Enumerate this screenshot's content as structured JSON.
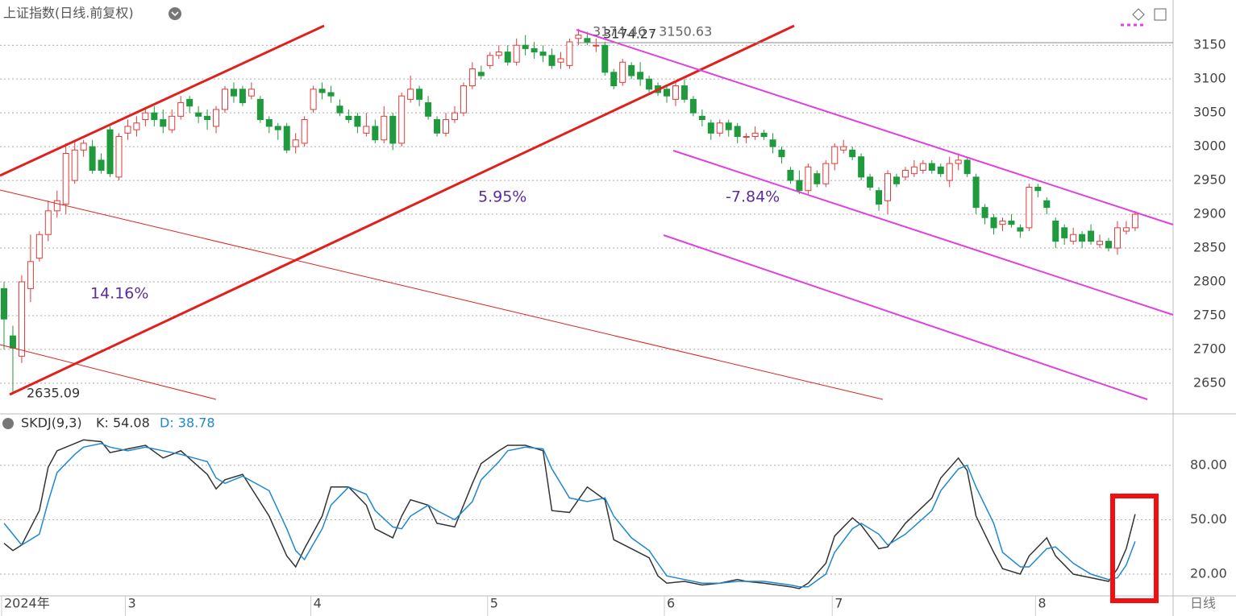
{
  "chart_data": [
    {
      "type": "candlestick",
      "title": "上证指数(日线.前复权)",
      "ylim": [
        2607,
        3211
      ],
      "yticks": [
        2650,
        2700,
        2750,
        2800,
        2850,
        2900,
        2950,
        3000,
        3050,
        3100,
        3150
      ],
      "up_color": "#e23a3a",
      "down_color": "#1f9a3c",
      "grid": true,
      "x_labels": [
        {
          "index": 0,
          "label": "2024年"
        },
        {
          "index": 14,
          "label": "3"
        },
        {
          "index": 35,
          "label": "4"
        },
        {
          "index": 55,
          "label": "5"
        },
        {
          "index": 75,
          "label": "6"
        },
        {
          "index": 94,
          "label": "7"
        },
        {
          "index": 117,
          "label": "8"
        }
      ],
      "period_button": "日线",
      "annotations": {
        "low": "2635.09",
        "high": "3174.27",
        "cursor": "3174.46 - 3150.63",
        "gain1": "14.16%",
        "gain2": "5.95%",
        "gain3": "-7.84%"
      },
      "candles": [
        [
          2790,
          2800,
          2700,
          2745
        ],
        [
          2720,
          2735,
          2635,
          2702
        ],
        [
          2690,
          2810,
          2680,
          2800
        ],
        [
          2790,
          2870,
          2770,
          2830
        ],
        [
          2835,
          2875,
          2830,
          2870
        ],
        [
          2870,
          2920,
          2860,
          2905
        ],
        [
          2905,
          2935,
          2895,
          2920
        ],
        [
          2915,
          3005,
          2900,
          2990
        ],
        [
          2950,
          3010,
          2945,
          2995
        ],
        [
          2995,
          3010,
          2985,
          3005
        ],
        [
          3000,
          3010,
          2960,
          2965
        ],
        [
          2980,
          2990,
          2960,
          2965
        ],
        [
          3025,
          3030,
          2955,
          2960
        ],
        [
          2955,
          3020,
          2950,
          3015
        ],
        [
          3020,
          3040,
          3010,
          3030
        ],
        [
          3025,
          3045,
          3015,
          3035
        ],
        [
          3040,
          3055,
          3030,
          3050
        ],
        [
          3050,
          3060,
          3030,
          3040
        ],
        [
          3040,
          3055,
          3020,
          3030
        ],
        [
          3025,
          3055,
          3020,
          3045
        ],
        [
          3045,
          3075,
          3040,
          3065
        ],
        [
          3070,
          3075,
          3050,
          3060
        ],
        [
          3050,
          3060,
          3035,
          3045
        ],
        [
          3045,
          3055,
          3025,
          3040
        ],
        [
          3030,
          3060,
          3020,
          3055
        ],
        [
          3055,
          3090,
          3050,
          3085
        ],
        [
          3085,
          3095,
          3065,
          3075
        ],
        [
          3085,
          3090,
          3060,
          3065
        ],
        [
          3075,
          3095,
          3070,
          3085
        ],
        [
          3070,
          3075,
          3035,
          3040
        ],
        [
          3040,
          3045,
          3020,
          3030
        ],
        [
          3030,
          3035,
          3010,
          3025
        ],
        [
          3030,
          3035,
          2990,
          2995
        ],
        [
          3000,
          3020,
          2990,
          3010
        ],
        [
          3005,
          3045,
          3000,
          3040
        ],
        [
          3055,
          3090,
          3050,
          3085
        ],
        [
          3085,
          3095,
          3070,
          3080
        ],
        [
          3080,
          3090,
          3065,
          3075
        ],
        [
          3060,
          3070,
          3045,
          3050
        ],
        [
          3045,
          3055,
          3035,
          3040
        ],
        [
          3045,
          3050,
          3020,
          3030
        ],
        [
          3020,
          3050,
          3015,
          3030
        ],
        [
          3030,
          3040,
          3005,
          3010
        ],
        [
          3010,
          3060,
          3005,
          3045
        ],
        [
          3045,
          3050,
          2995,
          3005
        ],
        [
          3005,
          3080,
          3000,
          3075
        ],
        [
          3070,
          3105,
          3065,
          3085
        ],
        [
          3085,
          3090,
          3060,
          3070
        ],
        [
          3065,
          3075,
          3040,
          3045
        ],
        [
          3040,
          3045,
          3015,
          3020
        ],
        [
          3020,
          3050,
          3015,
          3040
        ],
        [
          3040,
          3060,
          3035,
          3050
        ],
        [
          3050,
          3095,
          3045,
          3090
        ],
        [
          3090,
          3125,
          3085,
          3115
        ],
        [
          3110,
          3120,
          3100,
          3105
        ],
        [
          3120,
          3140,
          3115,
          3135
        ],
        [
          3135,
          3150,
          3130,
          3140
        ],
        [
          3140,
          3150,
          3120,
          3125
        ],
        [
          3125,
          3160,
          3120,
          3150
        ],
        [
          3150,
          3165,
          3135,
          3145
        ],
        [
          3145,
          3155,
          3130,
          3140
        ],
        [
          3140,
          3150,
          3125,
          3135
        ],
        [
          3135,
          3145,
          3115,
          3120
        ],
        [
          3125,
          3140,
          3115,
          3130
        ],
        [
          3120,
          3160,
          3115,
          3155
        ],
        [
          3160,
          3174.27,
          3150,
          3165
        ],
        [
          3160,
          3170,
          3150,
          3155
        ],
        [
          3150,
          3160,
          3140,
          3150
        ],
        [
          3150,
          3155,
          3105,
          3110
        ],
        [
          3110,
          3115,
          3085,
          3090
        ],
        [
          3095,
          3130,
          3090,
          3125
        ],
        [
          3120,
          3125,
          3100,
          3105
        ],
        [
          3110,
          3125,
          3090,
          3100
        ],
        [
          3100,
          3105,
          3080,
          3085
        ],
        [
          3090,
          3095,
          3075,
          3080
        ],
        [
          3085,
          3090,
          3065,
          3075
        ],
        [
          3070,
          3095,
          3060,
          3090
        ],
        [
          3090,
          3100,
          3065,
          3070
        ],
        [
          3070,
          3075,
          3045,
          3050
        ],
        [
          3045,
          3055,
          3030,
          3040
        ],
        [
          3035,
          3040,
          3010,
          3020
        ],
        [
          3020,
          3040,
          3015,
          3035
        ],
        [
          3035,
          3040,
          3015,
          3025
        ],
        [
          3030,
          3035,
          3005,
          3015
        ],
        [
          3015,
          3020,
          3005,
          3015
        ],
        [
          3015,
          3030,
          3010,
          3020
        ],
        [
          3020,
          3025,
          3010,
          3015
        ],
        [
          3010,
          3020,
          2990,
          3000
        ],
        [
          2995,
          3000,
          2975,
          2985
        ],
        [
          2965,
          2970,
          2945,
          2950
        ],
        [
          2950,
          2965,
          2930,
          2935
        ],
        [
          2935,
          2975,
          2930,
          2970
        ],
        [
          2960,
          2965,
          2940,
          2945
        ],
        [
          2945,
          2980,
          2940,
          2975
        ],
        [
          2975,
          3005,
          2965,
          3000
        ],
        [
          2995,
          3010,
          2990,
          3000
        ],
        [
          2995,
          3000,
          2980,
          2985
        ],
        [
          2985,
          2990,
          2950,
          2955
        ],
        [
          2955,
          2960,
          2935,
          2940
        ],
        [
          2935,
          2940,
          2905,
          2915
        ],
        [
          2920,
          2965,
          2900,
          2960
        ],
        [
          2955,
          2960,
          2940,
          2945
        ],
        [
          2955,
          2970,
          2950,
          2965
        ],
        [
          2960,
          2980,
          2955,
          2970
        ],
        [
          2965,
          2980,
          2960,
          2975
        ],
        [
          2975,
          2980,
          2960,
          2965
        ],
        [
          2970,
          2975,
          2955,
          2960
        ],
        [
          2950,
          2985,
          2940,
          2975
        ],
        [
          2975,
          2990,
          2965,
          2980
        ],
        [
          2980,
          2985,
          2955,
          2960
        ],
        [
          2955,
          2960,
          2900,
          2910
        ],
        [
          2910,
          2915,
          2885,
          2895
        ],
        [
          2895,
          2900,
          2870,
          2880
        ],
        [
          2885,
          2895,
          2875,
          2890
        ],
        [
          2890,
          2900,
          2880,
          2885
        ],
        [
          2880,
          2885,
          2865,
          2875
        ],
        [
          2880,
          2945,
          2875,
          2940
        ],
        [
          2940,
          2945,
          2925,
          2935
        ],
        [
          2920,
          2925,
          2900,
          2910
        ],
        [
          2890,
          2895,
          2850,
          2860
        ],
        [
          2880,
          2885,
          2855,
          2865
        ],
        [
          2860,
          2880,
          2855,
          2870
        ],
        [
          2870,
          2875,
          2850,
          2860
        ],
        [
          2875,
          2885,
          2855,
          2860
        ],
        [
          2855,
          2870,
          2850,
          2860
        ],
        [
          2860,
          2865,
          2845,
          2850
        ],
        [
          2850,
          2890,
          2840,
          2880
        ],
        [
          2875,
          2890,
          2870,
          2880
        ],
        [
          2880,
          2905,
          2875,
          2900
        ]
      ]
    },
    {
      "type": "line",
      "title": "SKDJ(9,3)",
      "ylim": [
        8,
        107
      ],
      "yticks": [
        {
          "value": 20,
          "label": "20.00"
        },
        {
          "value": 50,
          "label": "50.00"
        },
        {
          "value": 80,
          "label": "80.00"
        }
      ],
      "x": [
        0,
        1,
        2,
        4,
        5,
        6,
        8,
        9,
        11,
        12,
        14,
        16,
        18,
        20,
        23,
        24,
        25,
        27,
        30,
        32,
        33,
        34,
        36,
        37,
        39,
        41,
        42,
        44,
        45,
        46,
        48,
        49,
        51,
        53,
        54,
        56,
        57,
        59,
        61,
        62,
        64,
        66,
        68,
        69,
        71,
        73,
        74,
        75,
        77,
        79,
        81,
        83,
        84,
        86,
        89,
        90,
        91,
        93,
        94,
        96,
        97,
        99,
        100,
        102,
        105,
        106,
        108,
        109,
        110,
        112,
        113,
        115,
        116,
        118,
        119,
        121,
        123,
        125,
        126,
        127,
        128
      ],
      "series": [
        {
          "name": "K: 54.08",
          "color": "#333333",
          "values": [
            37,
            33,
            36,
            55,
            79,
            88,
            92,
            94,
            93,
            87,
            89,
            91,
            84,
            88,
            75,
            67,
            72,
            75,
            52,
            30,
            24,
            34,
            52,
            68,
            68,
            58,
            45,
            40,
            52,
            61,
            58,
            48,
            46,
            70,
            81,
            88,
            91,
            91,
            88,
            55,
            54,
            68,
            61,
            39,
            34,
            29,
            19,
            15,
            16,
            14,
            15,
            17,
            16,
            15,
            13,
            12,
            15,
            26,
            41,
            51,
            47,
            34,
            35,
            48,
            62,
            73,
            84,
            77,
            52,
            32,
            23,
            20,
            30,
            40,
            30,
            20,
            18,
            16,
            23,
            34,
            53
          ]
        },
        {
          "name": "D: 38.78",
          "color": "#1e88d0",
          "values": [
            48,
            42,
            36,
            42,
            60,
            76,
            86,
            90,
            92,
            90,
            88,
            90,
            88,
            86,
            82,
            73,
            70,
            74,
            66,
            45,
            33,
            28,
            45,
            58,
            68,
            64,
            55,
            46,
            45,
            52,
            58,
            55,
            50,
            60,
            72,
            82,
            88,
            90,
            89,
            78,
            62,
            60,
            62,
            52,
            40,
            33,
            26,
            19,
            17,
            15,
            15,
            16,
            16,
            16,
            14,
            13,
            13,
            20,
            32,
            45,
            48,
            42,
            36,
            42,
            55,
            66,
            78,
            80,
            68,
            48,
            32,
            24,
            24,
            34,
            35,
            26,
            20,
            17,
            18,
            25,
            38
          ]
        }
      ]
    }
  ]
}
